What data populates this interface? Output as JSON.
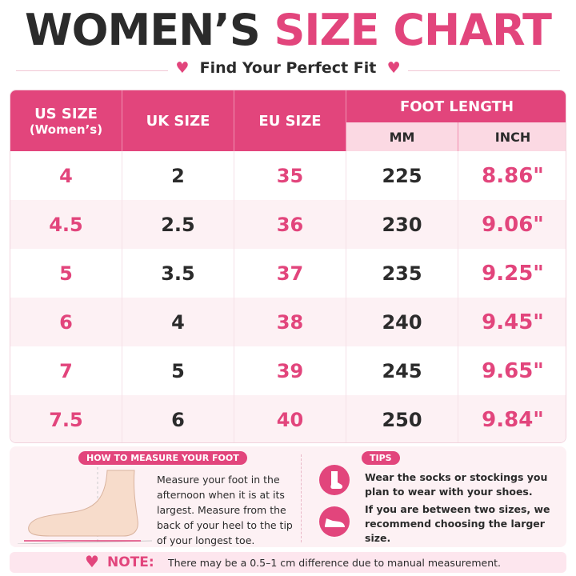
{
  "header": {
    "title_dark": "WOMEN’S",
    "title_pink": "SIZE CHART",
    "subtitle": "Find Your Perfect Fit"
  },
  "table": {
    "head": {
      "us": "US SIZE",
      "us_sub": "(Women’s)",
      "uk": "UK SIZE",
      "eu": "EU SIZE",
      "foot": "FOOT LENGTH",
      "mm": "MM",
      "inch": "INCH"
    },
    "rows": [
      [
        "4",
        "2",
        "35",
        "225",
        "8.86\""
      ],
      [
        "4.5",
        "2.5",
        "36",
        "230",
        "9.06\""
      ],
      [
        "5",
        "3.5",
        "37",
        "235",
        "9.25\""
      ],
      [
        "6",
        "4",
        "38",
        "240",
        "9.45\""
      ],
      [
        "7",
        "5",
        "39",
        "245",
        "9.65\""
      ],
      [
        "7.5",
        "6",
        "40",
        "250",
        "9.84\""
      ]
    ]
  },
  "measure": {
    "label": "HOW TO MEASURE YOUR FOOT",
    "text": "Measure your foot in the afternoon when it is at its largest. Measure from the back of your heel to the tip of your longest toe."
  },
  "tips": {
    "label": "TIPS",
    "items": [
      "Wear the socks or stockings you plan to wear with your shoes.",
      "If you are between two sizes, we recommend choosing the larger size."
    ]
  },
  "note": {
    "label": "NOTE:",
    "text": "There may be a 0.5–1 cm difference due to manual measurement."
  }
}
